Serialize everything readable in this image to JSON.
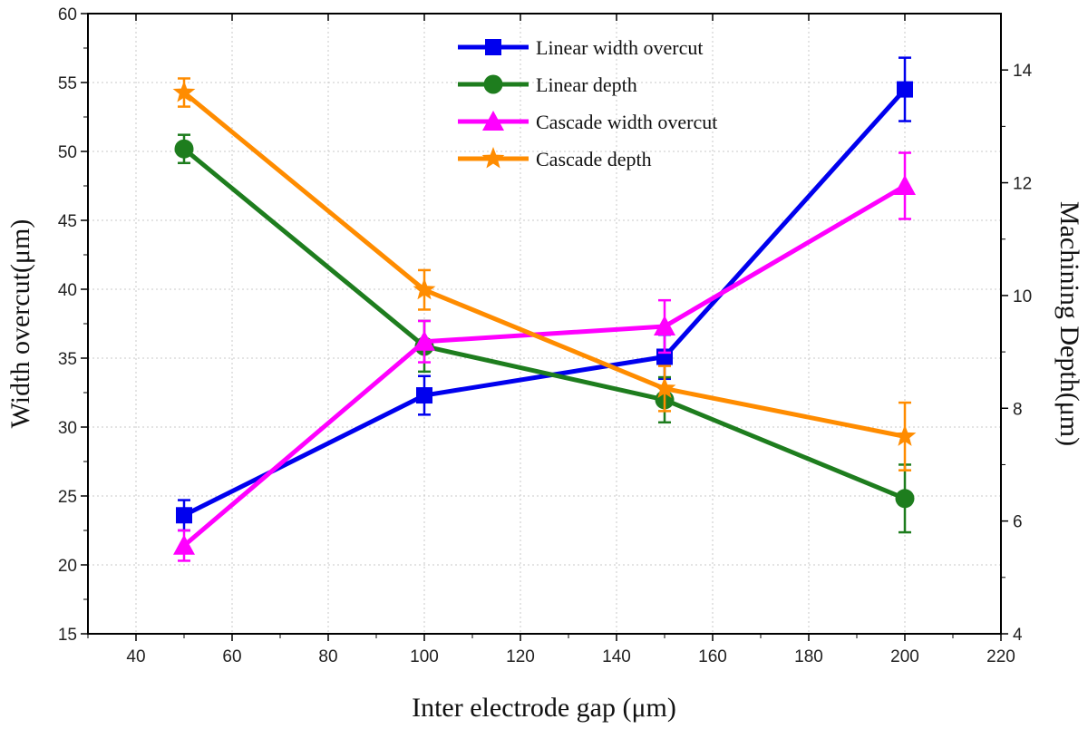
{
  "chart_data": {
    "type": "line",
    "title": "",
    "xlabel": "Inter electrode gap (μm)",
    "ylabel": "Width overcut(μm)",
    "y2label": "Machining Depth(μm)",
    "xlim": [
      30,
      220
    ],
    "ylim": [
      15,
      60
    ],
    "y2lim": [
      4,
      15
    ],
    "xticks": [
      40,
      60,
      80,
      100,
      120,
      140,
      160,
      180,
      200,
      220
    ],
    "yticks": [
      15,
      20,
      25,
      30,
      35,
      40,
      45,
      50,
      55,
      60
    ],
    "y2ticks": [
      4,
      6,
      8,
      10,
      12,
      14
    ],
    "grid": true,
    "legend_position": "top-center",
    "x": [
      50,
      100,
      150,
      200
    ],
    "series": [
      {
        "name": "Linear width overcut",
        "axis": "left",
        "marker": "square",
        "color": "#0000ee",
        "values": [
          23.6,
          32.3,
          35.1,
          54.5
        ],
        "errors": [
          1.1,
          1.4,
          1.6,
          2.3
        ]
      },
      {
        "name": "Linear depth",
        "axis": "right",
        "marker": "circle",
        "color": "#1e7d1e",
        "values": [
          12.6,
          9.1,
          8.15,
          6.4
        ],
        "errors": [
          0.25,
          0.45,
          0.4,
          0.6
        ]
      },
      {
        "name": "Cascade width overcut",
        "axis": "left",
        "marker": "triangle",
        "color": "#ff00ff",
        "values": [
          21.4,
          36.2,
          37.3,
          47.5
        ],
        "errors": [
          1.1,
          1.5,
          1.9,
          2.4
        ]
      },
      {
        "name": "Cascade depth",
        "axis": "right",
        "marker": "star",
        "color": "#ff8c00",
        "values": [
          13.6,
          10.1,
          8.35,
          7.5
        ],
        "errors": [
          0.25,
          0.35,
          0.4,
          0.6
        ]
      }
    ]
  }
}
